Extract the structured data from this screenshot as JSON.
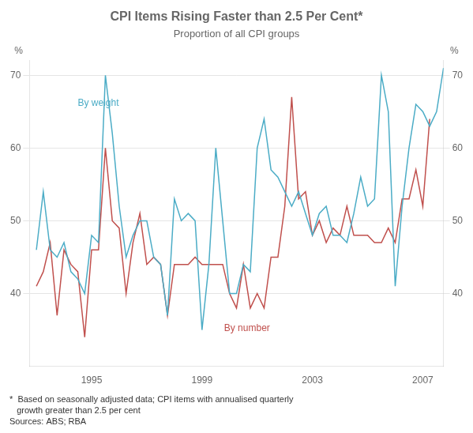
{
  "chart_data": {
    "type": "line",
    "title": "CPI Items Rising Faster than 2.5 Per Cent*",
    "subtitle": "Proportion of all CPI groups",
    "ylabel": "%",
    "y2label": "%",
    "footnote": "*  Based on seasonally adjusted data; CPI items with annualised quarterly\n   growth greater than 2.5 per cent\nSources: ABS; RBA",
    "x": [
      1993,
      1993.25,
      1993.5,
      1993.75,
      1994,
      1994.25,
      1994.5,
      1994.75,
      1995,
      1995.25,
      1995.5,
      1995.75,
      1996,
      1996.25,
      1996.5,
      1996.75,
      1997,
      1997.25,
      1997.5,
      1997.75,
      1998,
      1998.25,
      1998.5,
      1998.75,
      1999,
      1999.25,
      1999.5,
      1999.75,
      2000,
      2000.25,
      2000.5,
      2000.75,
      2001,
      2001.25,
      2001.5,
      2001.75,
      2002,
      2002.25,
      2002.5,
      2002.75,
      2003,
      2003.25,
      2003.5,
      2003.75,
      2004,
      2004.25,
      2004.5,
      2004.75,
      2005,
      2005.25,
      2005.5,
      2005.75,
      2006,
      2006.25,
      2006.5,
      2006.75,
      2007,
      2007.25,
      2007.5,
      2007.75
    ],
    "series": [
      {
        "name": "By weight",
        "color": "#4BACC6",
        "values": [
          46,
          54,
          46,
          45,
          47,
          43,
          42,
          40,
          48,
          47,
          70,
          62,
          52,
          45,
          48,
          50,
          50,
          45,
          44,
          37,
          53,
          50,
          51,
          50,
          35,
          44,
          60,
          50,
          40,
          40,
          44,
          43,
          60,
          64,
          57,
          56,
          54,
          52,
          54,
          51,
          48,
          51,
          52,
          48,
          48,
          47,
          51,
          56,
          52,
          53,
          70,
          65,
          41,
          52,
          60,
          66,
          65,
          63,
          65,
          71
        ]
      },
      {
        "name": "By number",
        "color": "#C0504D",
        "values": [
          41,
          43,
          47,
          37,
          46,
          44,
          43,
          34,
          46,
          46,
          60,
          50,
          49,
          40,
          47,
          51,
          44,
          45,
          44,
          37,
          44,
          44,
          44,
          45,
          44,
          44,
          44,
          44,
          40,
          38,
          44,
          38,
          40,
          38,
          45,
          45,
          52,
          67,
          53,
          54,
          48,
          50,
          47,
          49,
          48,
          52,
          48,
          48,
          48,
          47,
          47,
          49,
          47,
          53,
          53,
          57,
          52,
          64,
          null,
          null
        ]
      }
    ],
    "annotations": [
      {
        "text": "By weight",
        "x": 1994.5,
        "y": 65.5,
        "color": "#4BACC6"
      },
      {
        "text": "By number",
        "x": 1999.8,
        "y": 34.5,
        "color": "#C0504D"
      }
    ],
    "xlim": [
      1992.75,
      2007.75
    ],
    "xticks": [
      1995,
      1999,
      2003,
      2007
    ],
    "ylim": [
      30,
      72
    ],
    "yticks": [
      40,
      50,
      60,
      70
    ],
    "y2lim": [
      30,
      72
    ],
    "y2ticks": [
      40,
      50,
      60,
      70
    ],
    "grid": "y",
    "legend": false
  }
}
